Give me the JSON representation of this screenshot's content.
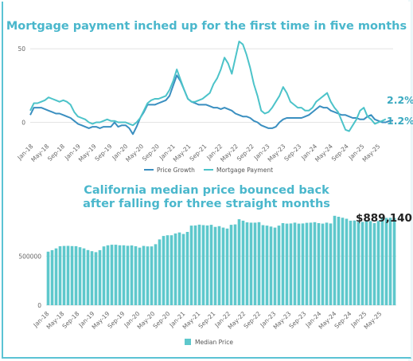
{
  "chart_data": [
    {
      "type": "line",
      "title": "Mortgage payment inched up for the first time in five months",
      "ylim": [
        -10,
        55
      ],
      "y_ticks": [
        "50",
        "0"
      ],
      "x_tick_labels": [
        "Jan-18",
        "May-18",
        "Sep-18",
        "Jan-19",
        "May-19",
        "Sep-19",
        "Jan-20",
        "May-20",
        "Sep-20",
        "Jan-21",
        "May-21",
        "Sep-21",
        "Jan-22",
        "May-22",
        "Sep-22",
        "Jan-23",
        "May-23",
        "Sep-23",
        "Jan-24",
        "May-24",
        "Sep-24",
        "Jan-25",
        "May-25"
      ],
      "legend_position": "bottom",
      "grid": "horizontal",
      "series": [
        {
          "name": "Price Growth",
          "color": "#3a8fc0",
          "end_label": "1.2%",
          "values": [
            5,
            10,
            10,
            10,
            9,
            8,
            7,
            6,
            6,
            5,
            4,
            3,
            1,
            -1,
            -2,
            -3,
            -4,
            -3,
            -3,
            -4,
            -3,
            -3,
            -3,
            0,
            -3,
            -2,
            -2,
            -4,
            -8,
            -3,
            3,
            7,
            12,
            12,
            12,
            13,
            14,
            15,
            18,
            25,
            32,
            28,
            22,
            16,
            14,
            13,
            12,
            12,
            12,
            11,
            10,
            10,
            9,
            10,
            9,
            8,
            6,
            5,
            4,
            4,
            3,
            1,
            0,
            -2,
            -3,
            -4,
            -4,
            -3,
            0,
            2,
            3,
            3,
            3,
            3,
            3,
            4,
            5,
            7,
            9,
            11,
            10,
            10,
            8,
            7,
            6,
            5,
            5,
            4,
            3,
            3,
            2,
            2,
            4,
            5,
            2,
            1,
            0,
            0,
            1,
            1.2
          ]
        },
        {
          "name": "Mortgage Payment",
          "color": "#4cc3c9",
          "end_label": "2.2%",
          "values": [
            8,
            13,
            13,
            14,
            15,
            17,
            16,
            15,
            14,
            15,
            14,
            12,
            7,
            4,
            3,
            2,
            0,
            -1,
            0,
            0,
            1,
            2,
            1,
            1,
            0,
            0,
            0,
            -1,
            -2,
            0,
            3,
            8,
            13,
            15,
            16,
            16,
            17,
            18,
            22,
            28,
            36,
            29,
            22,
            16,
            14,
            14,
            15,
            16,
            18,
            20,
            26,
            30,
            36,
            44,
            40,
            33,
            44,
            55,
            53,
            46,
            37,
            26,
            18,
            8,
            6,
            7,
            10,
            14,
            18,
            24,
            20,
            14,
            12,
            10,
            10,
            8,
            8,
            10,
            14,
            16,
            18,
            20,
            14,
            10,
            7,
            1,
            -5,
            -6,
            -2,
            2,
            8,
            10,
            4,
            2,
            -1,
            0,
            1,
            2.2
          ]
        }
      ]
    },
    {
      "type": "bar",
      "title": "California median price bounced back after falling for three straight months",
      "ylim": [
        0,
        900000
      ],
      "y_ticks": [
        "500000",
        "0"
      ],
      "x_tick_labels": [
        "Jan-18",
        "May-18",
        "Sep-18",
        "Jan-19",
        "May-19",
        "Sep-19",
        "Jan-20",
        "May-20",
        "Sep-20",
        "Jan-21",
        "May-21",
        "Sep-21",
        "Jan-22",
        "May-22",
        "Sep-22",
        "Jan-23",
        "May-23",
        "Sep-23",
        "Jan-24",
        "May-24",
        "Sep-24",
        "Jan-25",
        "May-25"
      ],
      "legend_position": "bottom",
      "grid": "horizontal",
      "series": [
        {
          "name": "Median Price",
          "color": "#5ec8cc",
          "values": [
            545000,
            560000,
            578000,
            600000,
            603000,
            604000,
            602000,
            601000,
            590000,
            578000,
            561000,
            550000,
            540000,
            560000,
            598000,
            610000,
            615000,
            615000,
            610000,
            610000,
            605000,
            608000,
            600000,
            586000,
            603000,
            598000,
            598000,
            621000,
            670000,
            705000,
            712000,
            712000,
            730000,
            740000,
            725000,
            746000,
            810000,
            812000,
            820000,
            815000,
            812000,
            818000,
            797000,
            804000,
            790000,
            780000,
            818000,
            822000,
            875000,
            860000,
            843000,
            840000,
            840000,
            845000,
            815000,
            810000,
            800000,
            790000,
            810000,
            835000,
            830000,
            832000,
            840000,
            830000,
            832000,
            838000,
            840000,
            845000,
            835000,
            830000,
            840000,
            832000,
            910000,
            900000,
            890000,
            880000,
            860000,
            862000,
            850000,
            848000,
            860000,
            856000,
            836000,
            857000,
            895000,
            889000,
            889140,
            889140
          ]
        }
      ],
      "highlight_label": "$889,140"
    }
  ]
}
